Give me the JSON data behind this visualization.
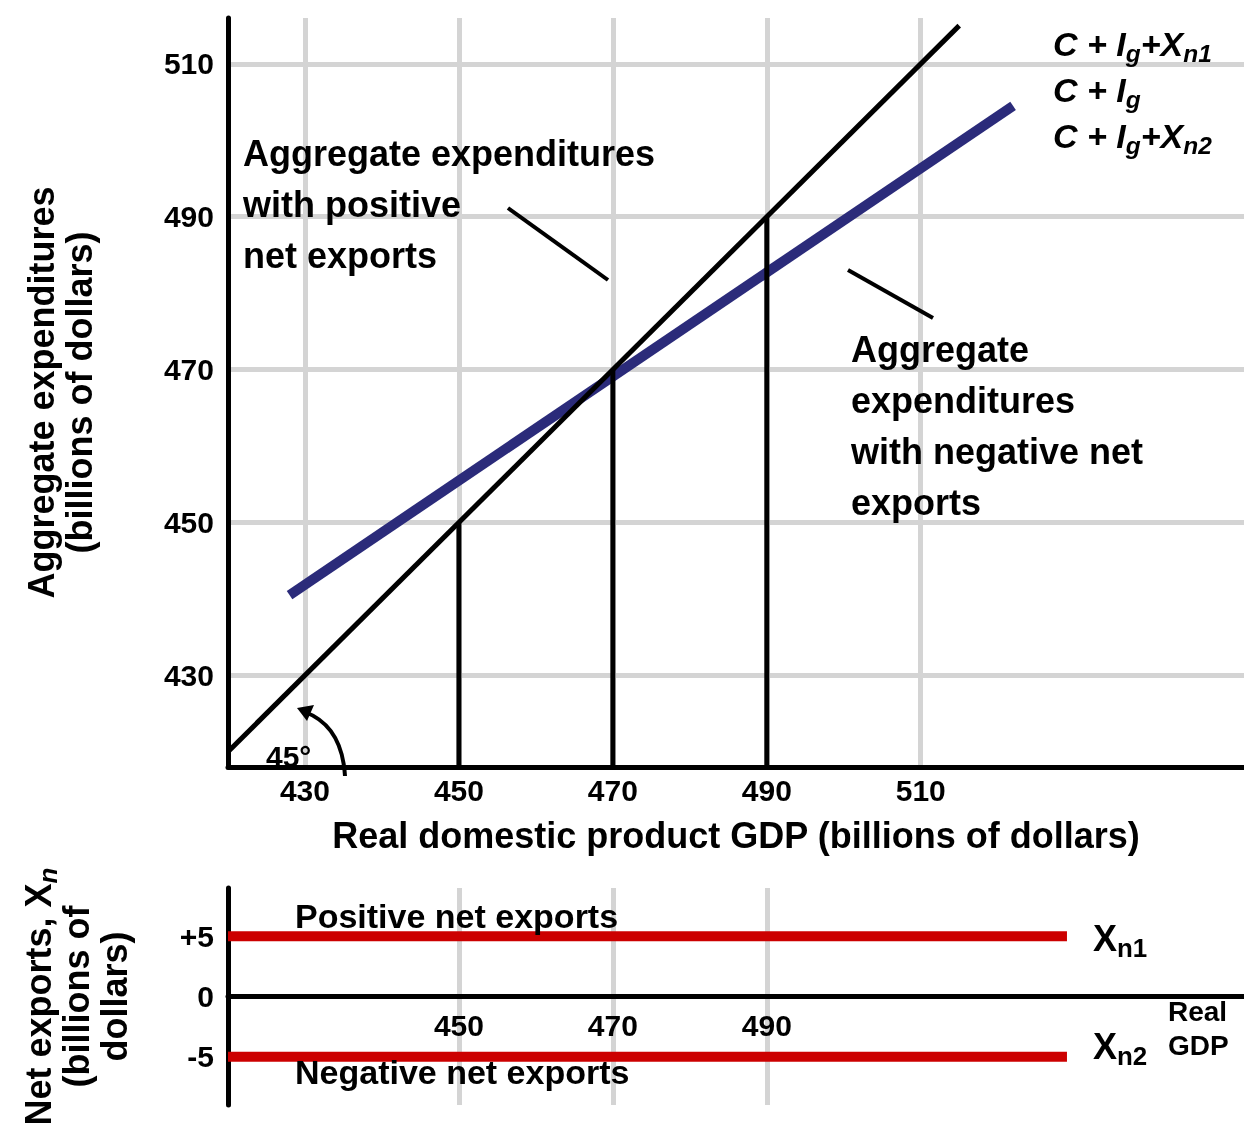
{
  "chart_data": [
    {
      "type": "line",
      "xlabel": "Real domestic product GDP (billions of dollars)",
      "ylabel": "Aggregate expenditures\n(billions of dollars)",
      "xlim": [
        420,
        552
      ],
      "xticks": [
        430,
        450,
        470,
        490,
        510
      ],
      "ylim": [
        418,
        516
      ],
      "yticks": [
        430,
        450,
        470,
        490,
        510
      ],
      "grid": true,
      "series": [
        {
          "color": "#000000",
          "x": [
            420,
            515
          ],
          "values": [
            420,
            515
          ]
        },
        {
          "color": "#2b2b7a",
          "x": [
            428,
            522
          ],
          "values": [
            440.5,
            504.5
          ]
        },
        {
          "color": "#000000",
          "x": [
            450,
            450
          ],
          "values": [
            418,
            450
          ]
        },
        {
          "color": "#000000",
          "x": [
            470,
            470
          ],
          "values": [
            418,
            470
          ]
        },
        {
          "color": "#000000",
          "x": [
            490,
            490
          ],
          "values": [
            418,
            490
          ]
        }
      ],
      "annotations": [
        "Aggregate expenditures\nwith positive\nnet exports",
        "Aggregate\nexpenditures\nwith negative net\nexports",
        "C + I$_{g}$+X$_{n1}$",
        "C + I$_{g}$",
        "C + I$_{g}$+X$_{n2}$",
        "45°"
      ]
    },
    {
      "type": "line",
      "xlabel": "Real\nGDP",
      "ylabel": "Net exports, X$_{n}$\n(billions of\ndollars)",
      "xlim": [
        420,
        552
      ],
      "xticks": [
        450,
        470,
        490
      ],
      "ylim": [
        -9,
        9
      ],
      "yticks": [
        {
          "value": 5,
          "label": "+5"
        },
        0,
        -5
      ],
      "grid": "x",
      "series": [
        {
          "color": "#cc0000",
          "x": [
            420,
            529
          ],
          "values": [
            5,
            5
          ]
        },
        {
          "color": "#cc0000",
          "x": [
            420,
            529
          ],
          "values": [
            -5,
            -5
          ]
        }
      ],
      "annotations": [
        "Positive net exports",
        "Negative net exports",
        "X$_{n1}$",
        "X$_{n2}$"
      ]
    }
  ]
}
